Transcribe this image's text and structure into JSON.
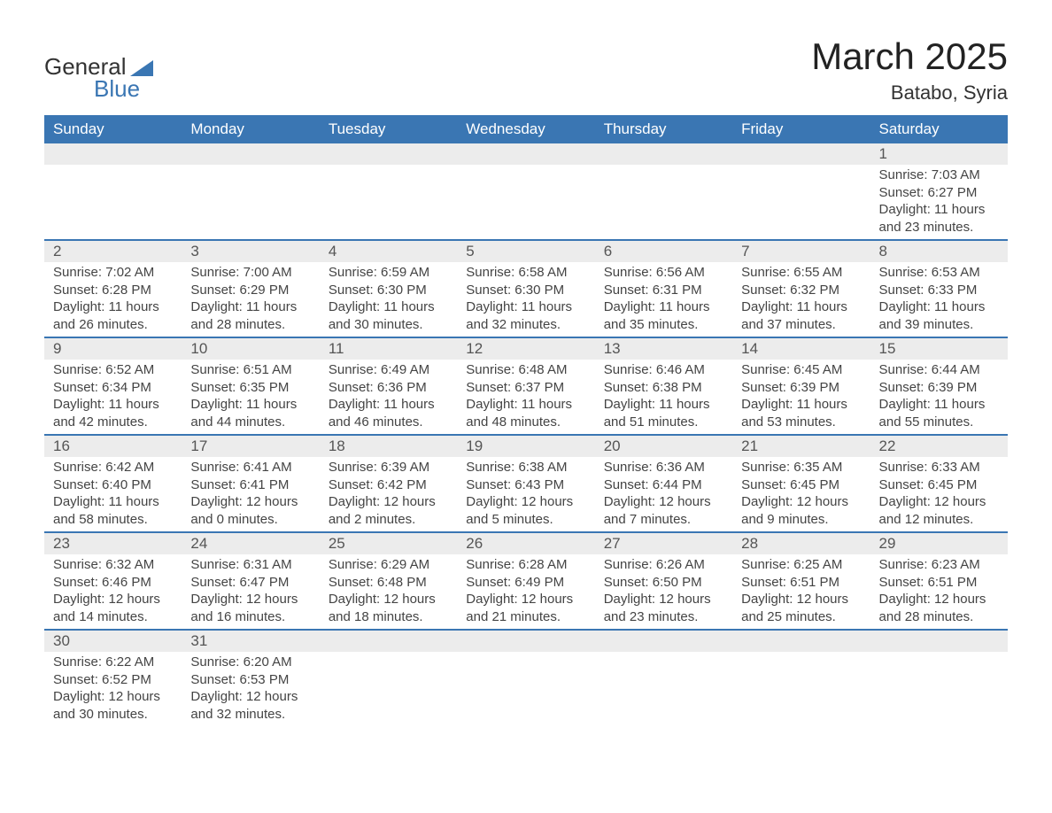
{
  "logo": {
    "text1": "General",
    "text2": "Blue",
    "triangle_color": "#3a76b3"
  },
  "title": "March 2025",
  "location": "Batabo, Syria",
  "colors": {
    "header_bg": "#3a76b3",
    "header_text": "#ffffff",
    "daynum_bg": "#ececec",
    "row_border": "#3a76b3",
    "body_text": "#444444"
  },
  "dayHeaders": [
    "Sunday",
    "Monday",
    "Tuesday",
    "Wednesday",
    "Thursday",
    "Friday",
    "Saturday"
  ],
  "weeks": [
    [
      {
        "empty": true
      },
      {
        "empty": true
      },
      {
        "empty": true
      },
      {
        "empty": true
      },
      {
        "empty": true
      },
      {
        "empty": true
      },
      {
        "day": "1",
        "sunrise": "Sunrise: 7:03 AM",
        "sunset": "Sunset: 6:27 PM",
        "daylight1": "Daylight: 11 hours",
        "daylight2": "and 23 minutes."
      }
    ],
    [
      {
        "day": "2",
        "sunrise": "Sunrise: 7:02 AM",
        "sunset": "Sunset: 6:28 PM",
        "daylight1": "Daylight: 11 hours",
        "daylight2": "and 26 minutes."
      },
      {
        "day": "3",
        "sunrise": "Sunrise: 7:00 AM",
        "sunset": "Sunset: 6:29 PM",
        "daylight1": "Daylight: 11 hours",
        "daylight2": "and 28 minutes."
      },
      {
        "day": "4",
        "sunrise": "Sunrise: 6:59 AM",
        "sunset": "Sunset: 6:30 PM",
        "daylight1": "Daylight: 11 hours",
        "daylight2": "and 30 minutes."
      },
      {
        "day": "5",
        "sunrise": "Sunrise: 6:58 AM",
        "sunset": "Sunset: 6:30 PM",
        "daylight1": "Daylight: 11 hours",
        "daylight2": "and 32 minutes."
      },
      {
        "day": "6",
        "sunrise": "Sunrise: 6:56 AM",
        "sunset": "Sunset: 6:31 PM",
        "daylight1": "Daylight: 11 hours",
        "daylight2": "and 35 minutes."
      },
      {
        "day": "7",
        "sunrise": "Sunrise: 6:55 AM",
        "sunset": "Sunset: 6:32 PM",
        "daylight1": "Daylight: 11 hours",
        "daylight2": "and 37 minutes."
      },
      {
        "day": "8",
        "sunrise": "Sunrise: 6:53 AM",
        "sunset": "Sunset: 6:33 PM",
        "daylight1": "Daylight: 11 hours",
        "daylight2": "and 39 minutes."
      }
    ],
    [
      {
        "day": "9",
        "sunrise": "Sunrise: 6:52 AM",
        "sunset": "Sunset: 6:34 PM",
        "daylight1": "Daylight: 11 hours",
        "daylight2": "and 42 minutes."
      },
      {
        "day": "10",
        "sunrise": "Sunrise: 6:51 AM",
        "sunset": "Sunset: 6:35 PM",
        "daylight1": "Daylight: 11 hours",
        "daylight2": "and 44 minutes."
      },
      {
        "day": "11",
        "sunrise": "Sunrise: 6:49 AM",
        "sunset": "Sunset: 6:36 PM",
        "daylight1": "Daylight: 11 hours",
        "daylight2": "and 46 minutes."
      },
      {
        "day": "12",
        "sunrise": "Sunrise: 6:48 AM",
        "sunset": "Sunset: 6:37 PM",
        "daylight1": "Daylight: 11 hours",
        "daylight2": "and 48 minutes."
      },
      {
        "day": "13",
        "sunrise": "Sunrise: 6:46 AM",
        "sunset": "Sunset: 6:38 PM",
        "daylight1": "Daylight: 11 hours",
        "daylight2": "and 51 minutes."
      },
      {
        "day": "14",
        "sunrise": "Sunrise: 6:45 AM",
        "sunset": "Sunset: 6:39 PM",
        "daylight1": "Daylight: 11 hours",
        "daylight2": "and 53 minutes."
      },
      {
        "day": "15",
        "sunrise": "Sunrise: 6:44 AM",
        "sunset": "Sunset: 6:39 PM",
        "daylight1": "Daylight: 11 hours",
        "daylight2": "and 55 minutes."
      }
    ],
    [
      {
        "day": "16",
        "sunrise": "Sunrise: 6:42 AM",
        "sunset": "Sunset: 6:40 PM",
        "daylight1": "Daylight: 11 hours",
        "daylight2": "and 58 minutes."
      },
      {
        "day": "17",
        "sunrise": "Sunrise: 6:41 AM",
        "sunset": "Sunset: 6:41 PM",
        "daylight1": "Daylight: 12 hours",
        "daylight2": "and 0 minutes."
      },
      {
        "day": "18",
        "sunrise": "Sunrise: 6:39 AM",
        "sunset": "Sunset: 6:42 PM",
        "daylight1": "Daylight: 12 hours",
        "daylight2": "and 2 minutes."
      },
      {
        "day": "19",
        "sunrise": "Sunrise: 6:38 AM",
        "sunset": "Sunset: 6:43 PM",
        "daylight1": "Daylight: 12 hours",
        "daylight2": "and 5 minutes."
      },
      {
        "day": "20",
        "sunrise": "Sunrise: 6:36 AM",
        "sunset": "Sunset: 6:44 PM",
        "daylight1": "Daylight: 12 hours",
        "daylight2": "and 7 minutes."
      },
      {
        "day": "21",
        "sunrise": "Sunrise: 6:35 AM",
        "sunset": "Sunset: 6:45 PM",
        "daylight1": "Daylight: 12 hours",
        "daylight2": "and 9 minutes."
      },
      {
        "day": "22",
        "sunrise": "Sunrise: 6:33 AM",
        "sunset": "Sunset: 6:45 PM",
        "daylight1": "Daylight: 12 hours",
        "daylight2": "and 12 minutes."
      }
    ],
    [
      {
        "day": "23",
        "sunrise": "Sunrise: 6:32 AM",
        "sunset": "Sunset: 6:46 PM",
        "daylight1": "Daylight: 12 hours",
        "daylight2": "and 14 minutes."
      },
      {
        "day": "24",
        "sunrise": "Sunrise: 6:31 AM",
        "sunset": "Sunset: 6:47 PM",
        "daylight1": "Daylight: 12 hours",
        "daylight2": "and 16 minutes."
      },
      {
        "day": "25",
        "sunrise": "Sunrise: 6:29 AM",
        "sunset": "Sunset: 6:48 PM",
        "daylight1": "Daylight: 12 hours",
        "daylight2": "and 18 minutes."
      },
      {
        "day": "26",
        "sunrise": "Sunrise: 6:28 AM",
        "sunset": "Sunset: 6:49 PM",
        "daylight1": "Daylight: 12 hours",
        "daylight2": "and 21 minutes."
      },
      {
        "day": "27",
        "sunrise": "Sunrise: 6:26 AM",
        "sunset": "Sunset: 6:50 PM",
        "daylight1": "Daylight: 12 hours",
        "daylight2": "and 23 minutes."
      },
      {
        "day": "28",
        "sunrise": "Sunrise: 6:25 AM",
        "sunset": "Sunset: 6:51 PM",
        "daylight1": "Daylight: 12 hours",
        "daylight2": "and 25 minutes."
      },
      {
        "day": "29",
        "sunrise": "Sunrise: 6:23 AM",
        "sunset": "Sunset: 6:51 PM",
        "daylight1": "Daylight: 12 hours",
        "daylight2": "and 28 minutes."
      }
    ],
    [
      {
        "day": "30",
        "sunrise": "Sunrise: 6:22 AM",
        "sunset": "Sunset: 6:52 PM",
        "daylight1": "Daylight: 12 hours",
        "daylight2": "and 30 minutes."
      },
      {
        "day": "31",
        "sunrise": "Sunrise: 6:20 AM",
        "sunset": "Sunset: 6:53 PM",
        "daylight1": "Daylight: 12 hours",
        "daylight2": "and 32 minutes."
      },
      {
        "empty": true
      },
      {
        "empty": true
      },
      {
        "empty": true
      },
      {
        "empty": true
      },
      {
        "empty": true
      }
    ]
  ]
}
